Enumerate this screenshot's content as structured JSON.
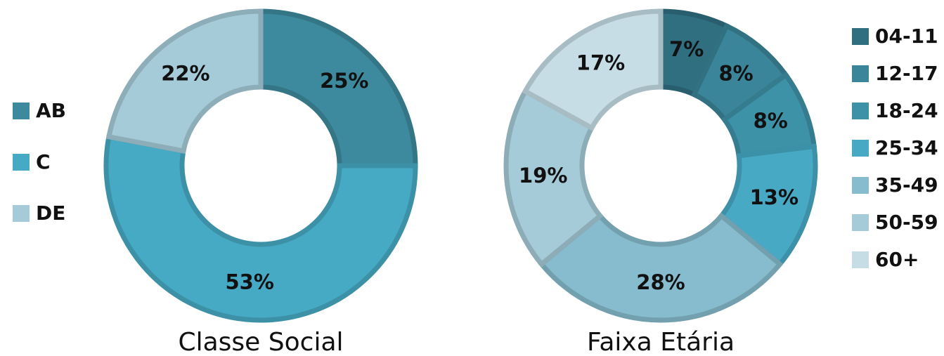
{
  "chart_data": [
    {
      "type": "pie",
      "title": "Classe Social",
      "categories": [
        "AB",
        "C",
        "DE"
      ],
      "values": [
        25,
        53,
        22
      ],
      "value_labels": [
        "25%",
        "53%",
        "22%"
      ],
      "colors": [
        "#3d8a9e",
        "#47aac5",
        "#a6cbd8"
      ],
      "donut": true,
      "legend": "left"
    },
    {
      "type": "pie",
      "title": "Faixa Etária",
      "categories": [
        "04-11",
        "12-17",
        "18-24",
        "25-34",
        "35-49",
        "50-59",
        "60+"
      ],
      "values": [
        7,
        8,
        8,
        13,
        28,
        19,
        17
      ],
      "value_labels": [
        "7%",
        "8%",
        "8%",
        "13%",
        "28%",
        "19%",
        "17%"
      ],
      "colors": [
        "#2f6f80",
        "#3a8599",
        "#3e92a8",
        "#47a9c4",
        "#86bccd",
        "#a5cad8",
        "#c6dde6"
      ],
      "donut": true,
      "legend": "right"
    }
  ]
}
